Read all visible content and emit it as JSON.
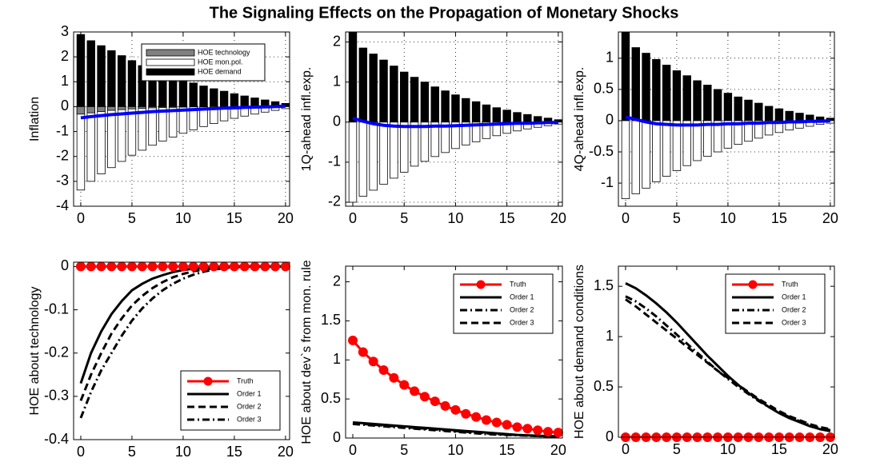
{
  "title": "The Signaling Effects on the Propagation of Monetary Shocks",
  "chart_data": [
    {
      "type": "bar",
      "y_label": "Inflation",
      "xlim": [
        -0.7,
        20.4
      ],
      "xticks": [
        0,
        5,
        10,
        15,
        20
      ],
      "ylim": [
        -4,
        3
      ],
      "yticks": [
        -4,
        -3,
        -2,
        -1,
        0,
        1,
        2,
        3
      ],
      "grid": true,
      "legend": "upper right",
      "x": [
        0,
        1,
        2,
        3,
        4,
        5,
        6,
        7,
        8,
        9,
        10,
        11,
        12,
        13,
        14,
        15,
        16,
        17,
        18,
        19,
        20
      ],
      "series": [
        {
          "name": "HOE demand",
          "type": "bar",
          "color": "#000000",
          "values": [
            2.9,
            2.65,
            2.45,
            2.25,
            2.05,
            1.85,
            1.65,
            1.5,
            1.35,
            1.2,
            1.07,
            0.95,
            0.83,
            0.72,
            0.62,
            0.52,
            0.43,
            0.35,
            0.27,
            0.2,
            0.13
          ]
        },
        {
          "name": "HOE mon.pol.",
          "type": "bar",
          "color": "#ffffff",
          "values": [
            -3.35,
            -3.0,
            -2.7,
            -2.45,
            -2.2,
            -1.95,
            -1.75,
            -1.55,
            -1.38,
            -1.22,
            -1.07,
            -0.93,
            -0.8,
            -0.68,
            -0.57,
            -0.47,
            -0.38,
            -0.3,
            -0.22,
            -0.15,
            -0.08
          ]
        },
        {
          "name": "HOE technology",
          "type": "bar",
          "color": "#808080",
          "values": [
            -0.3,
            -0.25,
            -0.2,
            -0.15,
            -0.12,
            -0.09,
            -0.07,
            -0.05,
            -0.04,
            -0.03,
            -0.02,
            -0.01,
            -0.01,
            0,
            0,
            0,
            0,
            0,
            0,
            0,
            0
          ]
        },
        {
          "type": "line",
          "color": "#0000ff",
          "values": [
            -0.45,
            -0.4,
            -0.36,
            -0.32,
            -0.29,
            -0.26,
            -0.23,
            -0.2,
            -0.18,
            -0.16,
            -0.14,
            -0.12,
            -0.1,
            -0.08,
            -0.06,
            -0.05,
            -0.03,
            -0.02,
            -0.01,
            0,
            0.02
          ]
        }
      ]
    },
    {
      "type": "bar",
      "y_label": "1Q-ahead infl.exp.",
      "xlim": [
        -0.7,
        20.4
      ],
      "xticks": [
        0,
        5,
        10,
        15,
        20
      ],
      "ylim": [
        -2.1,
        2.25
      ],
      "yticks": [
        -2,
        -1,
        0,
        1,
        2
      ],
      "grid": true,
      "x": [
        0,
        1,
        2,
        3,
        4,
        5,
        6,
        7,
        8,
        9,
        10,
        11,
        12,
        13,
        14,
        15,
        16,
        17,
        18,
        19,
        20
      ],
      "series": [
        {
          "type": "bar",
          "color": "#000000",
          "values": [
            2.25,
            1.85,
            1.7,
            1.55,
            1.4,
            1.25,
            1.12,
            1.0,
            0.88,
            0.78,
            0.68,
            0.59,
            0.51,
            0.43,
            0.36,
            0.3,
            0.24,
            0.19,
            0.14,
            0.1,
            0.06
          ]
        },
        {
          "type": "bar",
          "color": "#ffffff",
          "values": [
            -2.0,
            -1.85,
            -1.7,
            -1.55,
            -1.4,
            -1.25,
            -1.1,
            -0.98,
            -0.86,
            -0.76,
            -0.66,
            -0.57,
            -0.49,
            -0.41,
            -0.34,
            -0.28,
            -0.22,
            -0.17,
            -0.13,
            -0.09,
            -0.05
          ]
        },
        {
          "type": "line",
          "color": "#0000ff",
          "values": [
            0.1,
            0.02,
            -0.04,
            -0.08,
            -0.1,
            -0.11,
            -0.11,
            -0.11,
            -0.1,
            -0.1,
            -0.09,
            -0.08,
            -0.07,
            -0.06,
            -0.05,
            -0.04,
            -0.03,
            -0.03,
            -0.02,
            -0.01,
            -0.01
          ]
        }
      ]
    },
    {
      "type": "bar",
      "y_label": "4Q-ahead infl.exp.",
      "xlim": [
        -0.7,
        20.4
      ],
      "xticks": [
        0,
        5,
        10,
        15,
        20
      ],
      "ylim": [
        -1.37,
        1.42
      ],
      "yticks": [
        -1,
        -0.5,
        0,
        0.5,
        1
      ],
      "grid": true,
      "x": [
        0,
        1,
        2,
        3,
        4,
        5,
        6,
        7,
        8,
        9,
        10,
        11,
        12,
        13,
        14,
        15,
        16,
        17,
        18,
        19,
        20
      ],
      "series": [
        {
          "type": "bar",
          "color": "#000000",
          "values": [
            1.42,
            1.17,
            1.08,
            0.98,
            0.89,
            0.8,
            0.72,
            0.64,
            0.57,
            0.5,
            0.44,
            0.38,
            0.33,
            0.28,
            0.23,
            0.19,
            0.15,
            0.12,
            0.09,
            0.06,
            0.04
          ]
        },
        {
          "type": "bar",
          "color": "#ffffff",
          "values": [
            -1.25,
            -1.17,
            -1.08,
            -0.98,
            -0.89,
            -0.8,
            -0.72,
            -0.64,
            -0.57,
            -0.5,
            -0.44,
            -0.38,
            -0.33,
            -0.28,
            -0.23,
            -0.19,
            -0.15,
            -0.12,
            -0.09,
            -0.06,
            -0.04
          ]
        },
        {
          "type": "line",
          "color": "#0000ff",
          "values": [
            0.06,
            0.02,
            -0.02,
            -0.05,
            -0.06,
            -0.07,
            -0.07,
            -0.07,
            -0.06,
            -0.06,
            -0.05,
            -0.05,
            -0.04,
            -0.04,
            -0.03,
            -0.03,
            -0.02,
            -0.02,
            -0.01,
            -0.01,
            0
          ]
        }
      ]
    },
    {
      "type": "line",
      "y_label": "HOE about technology",
      "xlim": [
        -0.7,
        20.4
      ],
      "xticks": [
        0,
        5,
        10,
        15,
        20
      ],
      "ylim": [
        -0.4,
        0.01
      ],
      "yticks": [
        -0.4,
        -0.3,
        -0.2,
        -0.1,
        0
      ],
      "grid": false,
      "legend": "lower right",
      "x": [
        0,
        1,
        2,
        3,
        4,
        5,
        6,
        7,
        8,
        9,
        10,
        11,
        12,
        13,
        14,
        15,
        16,
        17,
        18,
        19,
        20
      ],
      "series": [
        {
          "name": "Truth",
          "color": "#ff0000",
          "style": "solid",
          "marker": "o",
          "values": [
            0,
            0,
            0,
            0,
            0,
            0,
            0,
            0,
            0,
            0,
            0,
            0,
            0,
            0,
            0,
            0,
            0,
            0,
            0,
            0,
            0
          ]
        },
        {
          "name": "Order 1",
          "color": "#000000",
          "style": "solid",
          "values": [
            -0.27,
            -0.2,
            -0.15,
            -0.11,
            -0.08,
            -0.055,
            -0.04,
            -0.028,
            -0.02,
            -0.013,
            -0.008,
            -0.005,
            -0.003,
            -0.002,
            -0.001,
            0,
            0,
            0,
            0,
            0,
            0
          ]
        },
        {
          "name": "Order 2",
          "color": "#000000",
          "style": "dashed",
          "values": [
            -0.31,
            -0.25,
            -0.2,
            -0.155,
            -0.12,
            -0.09,
            -0.068,
            -0.05,
            -0.036,
            -0.025,
            -0.017,
            -0.011,
            -0.007,
            -0.004,
            -0.002,
            -0.001,
            0,
            0,
            0,
            0,
            0
          ]
        },
        {
          "name": "Order 3",
          "color": "#000000",
          "style": "dashdot",
          "values": [
            -0.35,
            -0.29,
            -0.24,
            -0.2,
            -0.16,
            -0.125,
            -0.097,
            -0.074,
            -0.055,
            -0.04,
            -0.028,
            -0.019,
            -0.012,
            -0.007,
            -0.004,
            -0.002,
            -0.001,
            0,
            0,
            0,
            0
          ]
        }
      ]
    },
    {
      "type": "line",
      "y_label": "HOE about dev`s from mon. rule",
      "xlim": [
        -0.7,
        20.4
      ],
      "xticks": [
        0,
        5,
        10,
        15,
        20
      ],
      "ylim": [
        0,
        2.2
      ],
      "yticks": [
        0,
        0.5,
        1,
        1.5,
        2
      ],
      "grid": false,
      "legend": "upper right",
      "x": [
        0,
        1,
        2,
        3,
        4,
        5,
        6,
        7,
        8,
        9,
        10,
        11,
        12,
        13,
        14,
        15,
        16,
        17,
        18,
        19,
        20
      ],
      "series": [
        {
          "name": "Truth",
          "color": "#ff0000",
          "style": "solid",
          "marker": "o",
          "values": [
            1.25,
            1.1,
            0.98,
            0.87,
            0.77,
            0.68,
            0.6,
            0.53,
            0.47,
            0.41,
            0.36,
            0.31,
            0.27,
            0.23,
            0.2,
            0.17,
            0.14,
            0.12,
            0.1,
            0.08,
            0.07
          ]
        },
        {
          "name": "Order 1",
          "color": "#000000",
          "style": "solid",
          "values": [
            0.2,
            0.19,
            0.18,
            0.17,
            0.16,
            0.15,
            0.14,
            0.13,
            0.12,
            0.11,
            0.1,
            0.09,
            0.08,
            0.07,
            0.06,
            0.05,
            0.04,
            0.035,
            0.03,
            0.025,
            0.02
          ]
        },
        {
          "name": "Order 2",
          "color": "#000000",
          "style": "dashdot",
          "values": [
            0.18,
            0.17,
            0.16,
            0.15,
            0.14,
            0.13,
            0.12,
            0.11,
            0.1,
            0.09,
            0.08,
            0.07,
            0.06,
            0.05,
            0.045,
            0.04,
            0.035,
            0.03,
            0.025,
            0.02,
            0.02
          ]
        },
        {
          "name": "Order 3",
          "color": "#000000",
          "style": "dashed",
          "values": [
            0.19,
            0.18,
            0.17,
            0.16,
            0.15,
            0.14,
            0.13,
            0.12,
            0.11,
            0.1,
            0.09,
            0.08,
            0.07,
            0.06,
            0.05,
            0.045,
            0.04,
            0.03,
            0.025,
            0.02,
            0.02
          ]
        }
      ]
    },
    {
      "type": "line",
      "y_label": "HOE about demand conditions",
      "xlim": [
        -0.7,
        20.4
      ],
      "xticks": [
        0,
        5,
        10,
        15,
        20
      ],
      "ylim": [
        0,
        1.7
      ],
      "yticks": [
        0,
        0.5,
        1,
        1.5
      ],
      "grid": false,
      "legend": "upper right",
      "x": [
        0,
        1,
        2,
        3,
        4,
        5,
        6,
        7,
        8,
        9,
        10,
        11,
        12,
        13,
        14,
        15,
        16,
        17,
        18,
        19,
        20
      ],
      "series": [
        {
          "name": "Truth",
          "color": "#ff0000",
          "style": "solid",
          "marker": "o",
          "values": [
            0,
            0,
            0,
            0,
            0,
            0,
            0,
            0,
            0,
            0,
            0,
            0,
            0,
            0,
            0,
            0,
            0,
            0,
            0,
            0,
            0
          ]
        },
        {
          "name": "Order 1",
          "color": "#000000",
          "style": "solid",
          "values": [
            1.53,
            1.48,
            1.41,
            1.33,
            1.24,
            1.14,
            1.03,
            0.92,
            0.81,
            0.71,
            0.61,
            0.52,
            0.44,
            0.37,
            0.3,
            0.24,
            0.19,
            0.15,
            0.11,
            0.08,
            0.06
          ]
        },
        {
          "name": "Order 2",
          "color": "#000000",
          "style": "dashdot",
          "values": [
            1.4,
            1.35,
            1.28,
            1.2,
            1.11,
            1.02,
            0.93,
            0.84,
            0.75,
            0.66,
            0.58,
            0.5,
            0.43,
            0.36,
            0.3,
            0.25,
            0.2,
            0.16,
            0.12,
            0.09,
            0.07
          ]
        },
        {
          "name": "Order 3",
          "color": "#000000",
          "style": "dashed",
          "values": [
            1.37,
            1.3,
            1.22,
            1.14,
            1.06,
            0.98,
            0.9,
            0.82,
            0.74,
            0.66,
            0.59,
            0.52,
            0.45,
            0.38,
            0.32,
            0.26,
            0.21,
            0.17,
            0.13,
            0.1,
            0.08
          ]
        }
      ]
    }
  ]
}
